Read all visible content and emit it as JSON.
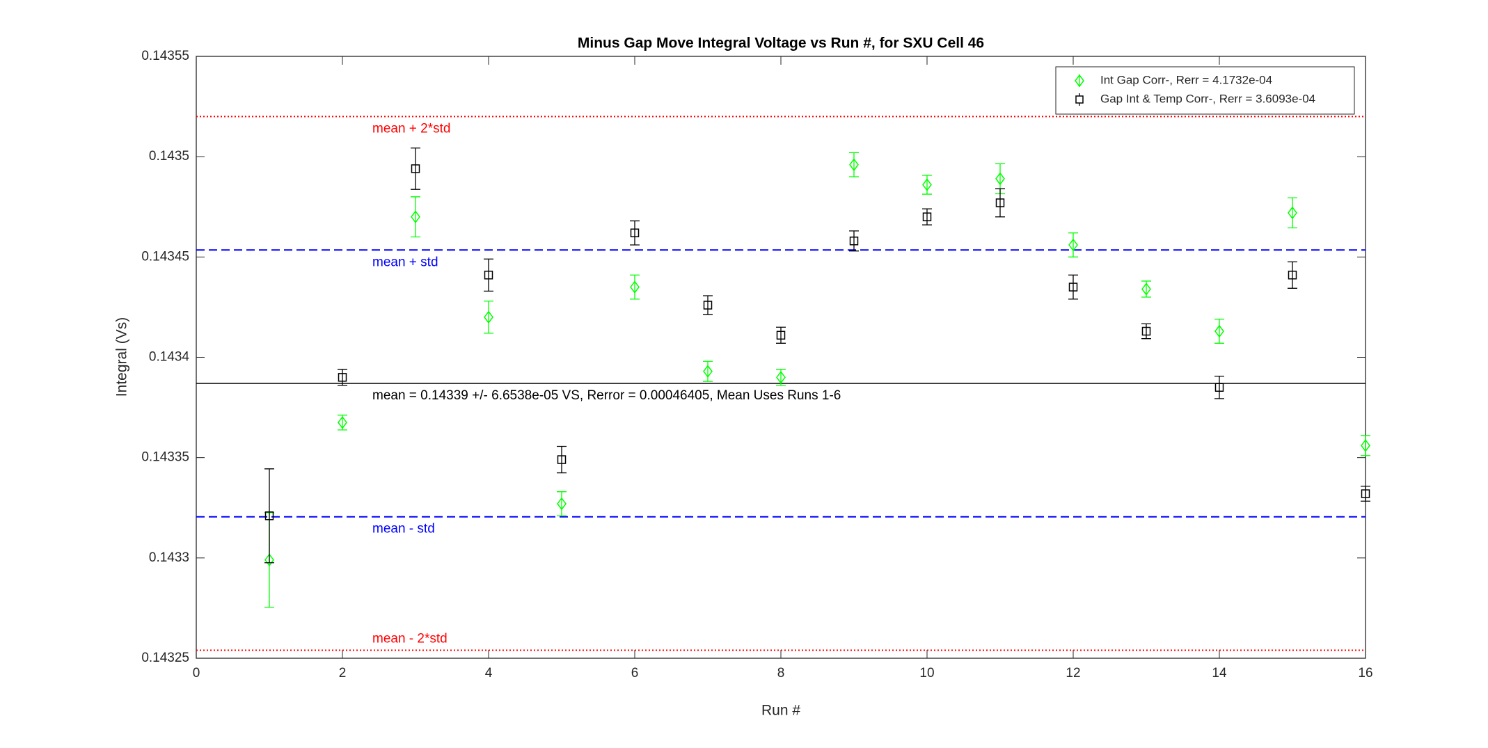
{
  "chart_data": {
    "type": "scatter",
    "title": "Minus Gap Move Integral Voltage vs Run #, for SXU Cell 46",
    "x_label": "Run #",
    "y_label": "Integral (Vs)",
    "x": [
      1,
      2,
      3,
      4,
      5,
      6,
      7,
      8,
      9,
      10,
      11,
      12,
      13,
      14,
      15,
      16
    ],
    "series": [
      {
        "name": "Int Gap Corr-, Rerr = 4.1732e-04",
        "color": "#00ff00",
        "marker": "diamond",
        "values": [
          0.143299,
          0.1433675,
          0.14347,
          0.14342,
          0.143327,
          0.143435,
          0.143393,
          0.14339,
          0.143496,
          0.143486,
          0.143489,
          0.143456,
          0.143434,
          0.143413,
          0.143472,
          0.143356
        ],
        "errors": [
          2.36e-05,
          3.7e-06,
          1e-05,
          8e-06,
          6e-06,
          6e-06,
          5e-06,
          4e-06,
          6e-06,
          4.7e-06,
          7.5e-06,
          6e-06,
          4e-06,
          6e-06,
          7.5e-06,
          5e-06
        ]
      },
      {
        "name": "Gap Int & Temp Corr-, Rerr = 3.6093e-04",
        "color": "#000000",
        "marker": "square",
        "values": [
          0.143321,
          0.14339,
          0.143494,
          0.143441,
          0.143349,
          0.143462,
          0.143426,
          0.143411,
          0.143458,
          0.14347,
          0.143477,
          0.143435,
          0.143413,
          0.143385,
          0.143441,
          0.143332
        ],
        "errors": [
          2.34e-05,
          4e-06,
          1.03e-05,
          8e-06,
          6.6e-06,
          6e-06,
          4.7e-06,
          4e-06,
          5e-06,
          4e-06,
          7e-06,
          6e-06,
          3.7e-06,
          5.6e-06,
          6.6e-06,
          3.7e-06
        ]
      }
    ],
    "reference_lines": [
      {
        "value": 0.14352,
        "label": "mean + 2*std",
        "color": "#ff0000",
        "style": "dotted"
      },
      {
        "value": 0.1434535,
        "label": "mean + std",
        "color": "#0000ff",
        "style": "dashed"
      },
      {
        "value": 0.143387,
        "label": "mean = 0.14339 +/- 6.6538e-05 VS, Rerror = 0.00046405, Mean Uses Runs 1-6",
        "color": "#000000",
        "style": "solid"
      },
      {
        "value": 0.1433205,
        "label": "mean - std",
        "color": "#0000ff",
        "style": "dashed"
      },
      {
        "value": 0.143254,
        "label": "mean - 2*std",
        "color": "#ff0000",
        "style": "dotted"
      }
    ],
    "xlim": [
      0,
      16
    ],
    "xticks": [
      0,
      2,
      4,
      6,
      8,
      10,
      12,
      14,
      16
    ],
    "ylim": [
      0.14325,
      0.14355
    ],
    "yticks": [
      0.14325,
      0.1433,
      0.14335,
      0.1434,
      0.14345,
      0.1435,
      0.14355
    ],
    "legend": "top-right"
  }
}
